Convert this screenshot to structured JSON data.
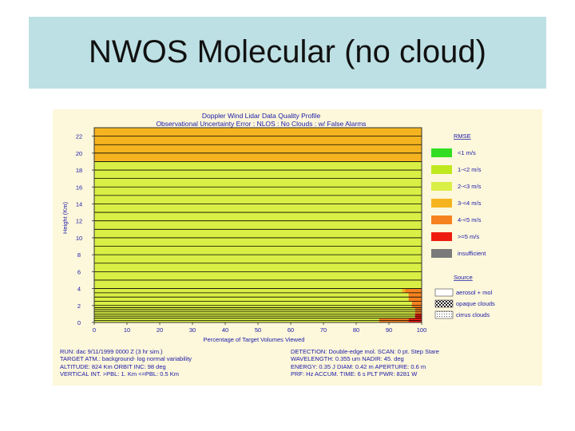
{
  "slide": {
    "title": "NWOS Molecular (no cloud)"
  },
  "chart_data": {
    "type": "bar",
    "orientation": "horizontal",
    "stacked": true,
    "title": "Doppler Wind Lidar Data Quality Profile",
    "subtitle": "Observational Uncertainty Error : NLOS : No Clouds : w/ False Alarms",
    "xlabel": "Percentage of Target Volumes Viewed",
    "ylabel": "Height (Km)",
    "xlim": [
      0,
      100
    ],
    "ylim": [
      0,
      23
    ],
    "xticks": [
      0,
      10,
      20,
      30,
      40,
      50,
      60,
      70,
      80,
      90,
      100
    ],
    "yticks": [
      0,
      2,
      4,
      6,
      8,
      10,
      12,
      14,
      16,
      18,
      20,
      22
    ],
    "ytick_labels": [
      "0",
      "2",
      "4",
      "6",
      "8",
      "10",
      "12",
      "14",
      "16",
      "18",
      "20",
      "22"
    ],
    "layer_boundaries_km": [
      0,
      0.25,
      0.5,
      0.75,
      1,
      1.25,
      1.5,
      1.75,
      2,
      2.5,
      3,
      3.5,
      4,
      5,
      6,
      7,
      8,
      9,
      10,
      11,
      12,
      13,
      14,
      15,
      16,
      17,
      18,
      19,
      20,
      21,
      22,
      23
    ],
    "bands": [
      {
        "y0": 0,
        "y1": 0.25,
        "segments": [
          {
            "error": "2-<3 m/s",
            "value": 87
          },
          {
            "error": "4-<5 m/s",
            "value": 9
          },
          {
            "error": ">=5 m/s",
            "value": 4
          }
        ]
      },
      {
        "y0": 0.25,
        "y1": 0.5,
        "segments": [
          {
            "error": "2-<3 m/s",
            "value": 87
          },
          {
            "error": "4-<5 m/s",
            "value": 9
          },
          {
            "error": ">=5 m/s",
            "value": 4
          }
        ]
      },
      {
        "y0": 0.5,
        "y1": 1,
        "segments": [
          {
            "error": "2-<3 m/s",
            "value": 98
          },
          {
            "error": ">=5 m/s",
            "value": 2
          }
        ]
      },
      {
        "y0": 1,
        "y1": 1.75,
        "segments": [
          {
            "error": "2-<3 m/s",
            "value": 98
          },
          {
            "error": "4-<5 m/s",
            "value": 2
          }
        ]
      },
      {
        "y0": 1.75,
        "y1": 2.5,
        "segments": [
          {
            "error": "2-<3 m/s",
            "value": 97
          },
          {
            "error": "4-<5 m/s",
            "value": 3
          }
        ]
      },
      {
        "y0": 2.5,
        "y1": 3.5,
        "segments": [
          {
            "error": "2-<3 m/s",
            "value": 96
          },
          {
            "error": "4-<5 m/s",
            "value": 4
          }
        ]
      },
      {
        "y0": 3.5,
        "y1": 4,
        "segments": [
          {
            "error": "2-<3 m/s",
            "value": 94
          },
          {
            "error": "3-<4 m/s",
            "value": 1
          },
          {
            "error": "4-<5 m/s",
            "value": 5
          }
        ]
      },
      {
        "y0": 4,
        "y1": 19,
        "segments": [
          {
            "error": "2-<3 m/s",
            "value": 100
          }
        ]
      },
      {
        "y0": 19,
        "y1": 23,
        "segments": [
          {
            "error": "3-<4 m/s",
            "value": 100
          }
        ]
      }
    ],
    "legend": {
      "title": "RMSE",
      "placement": "right",
      "items": [
        {
          "label": "<1 m/s",
          "color": "#33dd22"
        },
        {
          "label": "1-<2 m/s",
          "color": "#bfe81e"
        },
        {
          "label": "2-<3 m/s",
          "color": "#d9ef45"
        },
        {
          "label": "3-<4 m/s",
          "color": "#f5b41f"
        },
        {
          "label": "4-<5 m/s",
          "color": "#f5821f"
        },
        {
          "label": ">=5 m/s",
          "color": "#ee1c10"
        },
        {
          "label": "insufficient",
          "color": "#7a7a7a"
        }
      ]
    },
    "source_legend": {
      "title": "Source",
      "items": [
        {
          "label": "aerosol + mol",
          "pattern": "white"
        },
        {
          "label": "opaque clouds",
          "pattern": "checker"
        },
        {
          "label": "cirrus clouds",
          "pattern": "dots"
        }
      ]
    },
    "grid": true
  },
  "info": {
    "left": [
      "RUN:  dac 9/11/1999 0000 Z (3 hr sim.)",
      "TARGET ATM.: background- log normal variability",
      "ALTITUDE: 824 Km     ORBIT INC: 98 deg",
      "VERTICAL INT. >PBL: 1. Km   <=PBL: 0.5 Km"
    ],
    "right": [
      "DETECTION: Double-edge mol.  SCAN: 0 pt. Step  Stare",
      "WAVELENGTH: 0.355 um     NADIR: 45. deg",
      "ENERGY: 0.35 J  DIAM: 0.42 m  APERTURE: 0.6 m",
      "PRF:  Hz     ACCUM. TIME: 6 s PLT PWR: 8281 W"
    ]
  }
}
